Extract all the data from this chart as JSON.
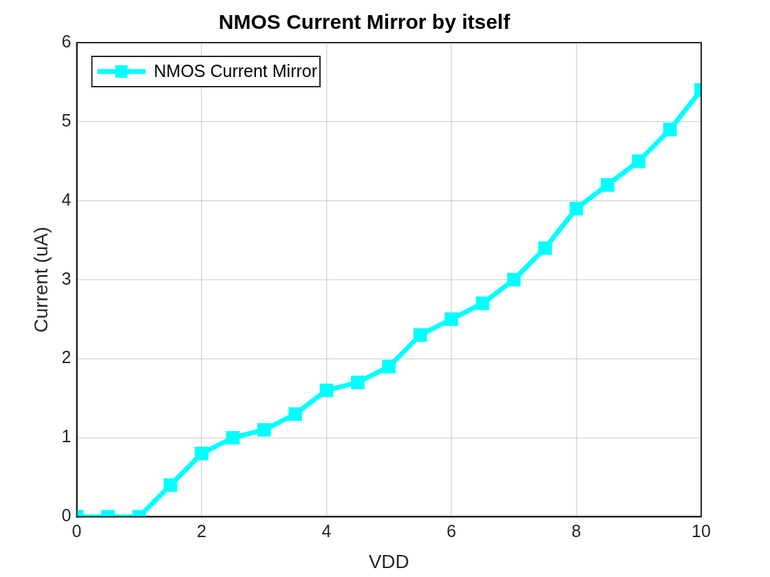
{
  "chart_data": {
    "type": "line",
    "title": "NMOS Current Mirror by itself",
    "xlabel": "VDD",
    "ylabel": "Current (uA)",
    "x": [
      0,
      0.5,
      1,
      1.5,
      2,
      2.5,
      3,
      3.5,
      4,
      4.5,
      5,
      5.5,
      6,
      6.5,
      7,
      7.5,
      8,
      8.5,
      9,
      9.5,
      10
    ],
    "series": [
      {
        "name": "NMOS Current Mirror",
        "color": "#00ffff",
        "values": [
          0,
          0,
          0,
          0.4,
          0.8,
          1.0,
          1.1,
          1.3,
          1.6,
          1.7,
          1.9,
          2.3,
          2.5,
          2.7,
          3.0,
          3.4,
          3.9,
          4.2,
          4.5,
          4.9,
          5.4
        ]
      }
    ],
    "xlim": [
      0,
      10
    ],
    "xticks": [
      0,
      2,
      4,
      6,
      8,
      10
    ],
    "ylim": [
      0,
      6
    ],
    "yticks": [
      0,
      1,
      2,
      3,
      4,
      5,
      6
    ],
    "grid": true,
    "legend": "top left",
    "marker": "square",
    "line_style": "solid"
  }
}
